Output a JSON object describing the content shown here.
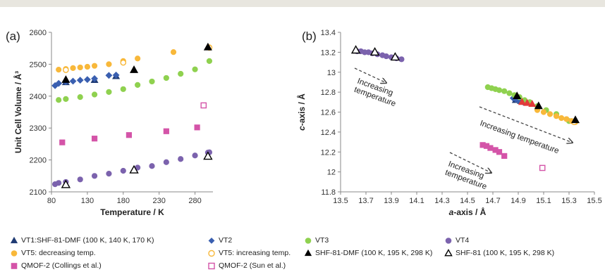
{
  "chart_data": [
    {
      "panel_label": "(a)",
      "type": "scatter",
      "xlabel": "Temperature / K",
      "ylabel": "Unit Cell Volume / Å³",
      "xlim": [
        80,
        305
      ],
      "ylim": [
        2100,
        2600
      ],
      "xticks": [
        80,
        130,
        180,
        230,
        280
      ],
      "yticks": [
        2100,
        2200,
        2300,
        2400,
        2500,
        2600
      ],
      "grid": false,
      "series": [
        {
          "key": "vt1",
          "x": [
            100,
            140,
            170
          ],
          "y": [
            2443,
            2450,
            2462
          ]
        },
        {
          "key": "vt2",
          "x": [
            85,
            90,
            100,
            110,
            120,
            130,
            140,
            160,
            170
          ],
          "y": [
            2433,
            2440,
            2445,
            2447,
            2450,
            2452,
            2455,
            2465,
            2466
          ]
        },
        {
          "key": "vt3",
          "x": [
            90,
            100,
            120,
            140,
            160,
            180,
            200,
            220,
            240,
            260,
            280,
            300
          ],
          "y": [
            2388,
            2391,
            2397,
            2405,
            2413,
            2422,
            2435,
            2446,
            2457,
            2470,
            2484,
            2510
          ]
        },
        {
          "key": "vt4",
          "x": [
            85,
            90,
            100,
            120,
            140,
            160,
            180,
            200,
            220,
            240,
            260,
            280,
            298,
            300
          ],
          "y": [
            2124,
            2128,
            2131,
            2139,
            2150,
            2157,
            2166,
            2176,
            2181,
            2193,
            2203,
            2214,
            2223,
            2224
          ]
        },
        {
          "key": "vt5d",
          "x": [
            90,
            100,
            110,
            120,
            130,
            140,
            160,
            180,
            200,
            250,
            300
          ],
          "y": [
            2483,
            2485,
            2488,
            2490,
            2492,
            2495,
            2500,
            2510,
            2518,
            2538,
            2553
          ]
        },
        {
          "key": "vt5i",
          "x": [
            100,
            180,
            300
          ],
          "y": [
            2482,
            2505,
            2552
          ]
        },
        {
          "key": "shf_dmf",
          "x": [
            100,
            195,
            298
          ],
          "y": [
            2451,
            2482,
            2553
          ]
        },
        {
          "key": "shf",
          "x": [
            100,
            195,
            298
          ],
          "y": [
            2122,
            2168,
            2211
          ]
        },
        {
          "key": "qmof_c",
          "x": [
            95,
            140,
            188,
            240,
            283
          ],
          "y": [
            2255,
            2267,
            2278,
            2290,
            2302
          ]
        },
        {
          "key": "qmof_s",
          "x": [
            292
          ],
          "y": [
            2371
          ]
        }
      ]
    },
    {
      "panel_label": "(b)",
      "type": "scatter",
      "xlabel": "a-axis / Å",
      "ylabel": "c-axis / Å",
      "xlim": [
        13.5,
        15.5
      ],
      "ylim": [
        11.8,
        13.4
      ],
      "xticks": [
        "13.5",
        "13.7",
        "13.9",
        "14.1",
        "14.3",
        "14.5",
        "14.7",
        "14.9",
        "15.1",
        "15.3",
        "15.5"
      ],
      "yticks": [
        "11.8",
        "12",
        "12.2",
        "12.4",
        "12.6",
        "12.8",
        "13",
        "13.2",
        "13.4"
      ],
      "grid": false,
      "annotations": [
        {
          "lines": [
            "Increasing",
            "temperature"
          ],
          "x": 13.57,
          "y": 12.95
        },
        {
          "lines": [
            "Increasing temperature"
          ],
          "x": 14.92,
          "y": 12.61
        },
        {
          "lines": [
            "Increasing",
            "temperature"
          ],
          "x": 14.55,
          "y": 12.08
        }
      ],
      "series": [
        {
          "key": "vt1",
          "x": [
            14.88,
            14.92,
            14.96
          ],
          "y": [
            12.72,
            12.71,
            12.7
          ]
        },
        {
          "key": "vt2",
          "x": [
            14.86,
            14.88,
            14.9,
            14.92,
            14.94
          ],
          "y": [
            12.74,
            12.73,
            12.72,
            12.71,
            12.7
          ]
        },
        {
          "key": "vt3",
          "x": [
            14.66,
            14.69,
            14.72,
            14.75,
            14.79,
            14.83,
            14.87,
            14.91,
            14.95,
            14.99,
            15.05,
            15.12,
            15.2,
            15.3
          ],
          "y": [
            12.85,
            12.84,
            12.83,
            12.82,
            12.81,
            12.79,
            12.77,
            12.75,
            12.72,
            12.7,
            12.66,
            12.62,
            12.58,
            12.51
          ]
        },
        {
          "key": "vt4",
          "x": [
            13.63,
            13.66,
            13.69,
            13.72,
            13.75,
            13.79,
            13.83,
            13.86,
            13.9,
            13.94,
            13.98
          ],
          "y": [
            13.21,
            13.21,
            13.2,
            13.2,
            13.19,
            13.18,
            13.17,
            13.16,
            13.15,
            13.14,
            13.13
          ]
        },
        {
          "key": "vt5d",
          "x": [
            15.05,
            15.1,
            15.15,
            15.2,
            15.24,
            15.28,
            15.32,
            15.35
          ],
          "y": [
            12.62,
            12.6,
            12.58,
            12.56,
            12.54,
            12.53,
            12.51,
            12.5
          ]
        },
        {
          "key": "vt5i",
          "x": [
            15.34
          ],
          "y": [
            12.5
          ]
        },
        {
          "key": "shf_dmf",
          "x": [
            14.89,
            15.06,
            15.35
          ],
          "y": [
            12.76,
            12.66,
            12.52
          ]
        },
        {
          "key": "shf",
          "x": [
            13.62,
            13.77,
            13.93
          ],
          "y": [
            13.22,
            13.2,
            13.15
          ]
        },
        {
          "key": "qmof_c",
          "x": [
            14.62,
            14.65,
            14.68,
            14.72,
            14.75,
            14.79
          ],
          "y": [
            12.27,
            12.26,
            12.24,
            12.22,
            12.2,
            12.16
          ]
        },
        {
          "key": "qmof_s",
          "x": [
            15.09
          ],
          "y": [
            12.04
          ]
        },
        {
          "key": "red",
          "x": [
            14.93,
            14.97,
            15.01
          ],
          "y": [
            12.7,
            12.69,
            12.68
          ]
        }
      ]
    }
  ],
  "styles": {
    "vt1": {
      "shape": "triangle",
      "fill": "#1f3b73",
      "stroke": "#1f3b73",
      "size": 5
    },
    "vt2": {
      "shape": "diamond",
      "fill": "#3a5fb0",
      "stroke": "#3a5fb0",
      "size": 4.5
    },
    "vt3": {
      "shape": "circle",
      "fill": "#8fd14f",
      "stroke": "#8fd14f",
      "size": 3.8
    },
    "vt4": {
      "shape": "circle",
      "fill": "#7b62ad",
      "stroke": "#7b62ad",
      "size": 3.8
    },
    "vt5d": {
      "shape": "circle",
      "fill": "#f8b83a",
      "stroke": "#f8b83a",
      "size": 3.8
    },
    "vt5i": {
      "shape": "circle",
      "fill": "#ffffff",
      "stroke": "#f8b83a",
      "size": 3.6
    },
    "shf_dmf": {
      "shape": "triangle",
      "fill": "#000000",
      "stroke": "#000000",
      "size": 5.5
    },
    "shf": {
      "shape": "triangle",
      "fill": "#ffffff",
      "stroke": "#000000",
      "size": 5.5
    },
    "qmof_c": {
      "shape": "square",
      "fill": "#d454a8",
      "stroke": "#d454a8",
      "size": 3.8
    },
    "qmof_s": {
      "shape": "square",
      "fill": "#ffffff",
      "stroke": "#d454a8",
      "size": 3.6
    },
    "red": {
      "shape": "triangle",
      "fill": "#e23a3a",
      "stroke": "#e23a3a",
      "size": 5
    }
  },
  "legend": [
    {
      "key": "vt1",
      "label": "VT1:SHF-81-DMF (100 K, 140 K, 170 K)"
    },
    {
      "key": "vt2",
      "label": "VT2"
    },
    {
      "key": "vt3",
      "label": "VT3"
    },
    {
      "key": "vt4",
      "label": "VT4"
    },
    {
      "key": "vt5d",
      "label": "VT5: decreasing temp."
    },
    {
      "key": "vt5i",
      "label": "VT5: increasing temp."
    },
    {
      "key": "shf_dmf",
      "label": "SHF-81-DMF (100 K, 195 K, 298 K)"
    },
    {
      "key": "shf",
      "label": "SHF-81 (100 K, 195 K, 298 K)"
    },
    {
      "key": "qmof_c",
      "label": "QMOF-2 (Collings et al.)"
    },
    {
      "key": "qmof_s",
      "label": "QMOF-2 (Sun et al.)"
    }
  ]
}
